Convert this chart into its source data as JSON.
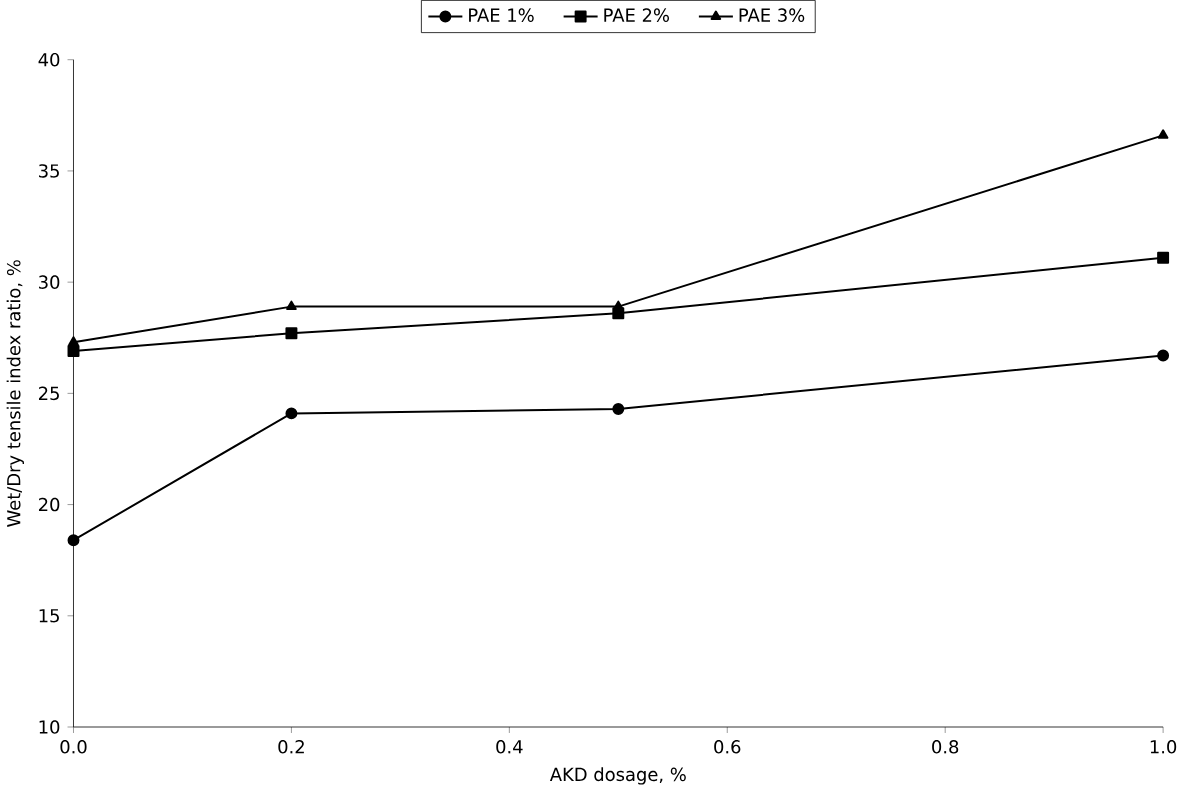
{
  "chart_data": {
    "type": "line",
    "xlabel": "AKD dosage, %",
    "ylabel": "Wet/Dry  tensile  index  ratio,  %",
    "x": [
      0,
      0.2,
      0.5,
      1.0
    ],
    "xlim": [
      0,
      1.0
    ],
    "xticks": [
      {
        "value": 0,
        "label": "0.0"
      },
      {
        "value": 0.2,
        "label": "0.2"
      },
      {
        "value": 0.4,
        "label": "0.4"
      },
      {
        "value": 0.6,
        "label": "0.6"
      },
      {
        "value": 0.8,
        "label": "0.8"
      },
      {
        "value": 1.0,
        "label": "1.0"
      }
    ],
    "ylim": [
      10,
      40
    ],
    "yticks": [
      10,
      15,
      20,
      25,
      30,
      35,
      40
    ],
    "grid": false,
    "legend": "top",
    "line_style": "solid",
    "series": [
      {
        "name": "PAE 1%",
        "color": "#000000",
        "marker": "circle",
        "values": [
          18.4,
          24.1,
          24.3,
          26.7
        ]
      },
      {
        "name": "PAE 2%",
        "color": "#000000",
        "marker": "square",
        "values": [
          26.9,
          27.7,
          28.6,
          31.1
        ]
      },
      {
        "name": "PAE 3%",
        "color": "#000000",
        "marker": "triangle",
        "values": [
          27.3,
          28.9,
          28.9,
          36.6
        ]
      }
    ]
  }
}
